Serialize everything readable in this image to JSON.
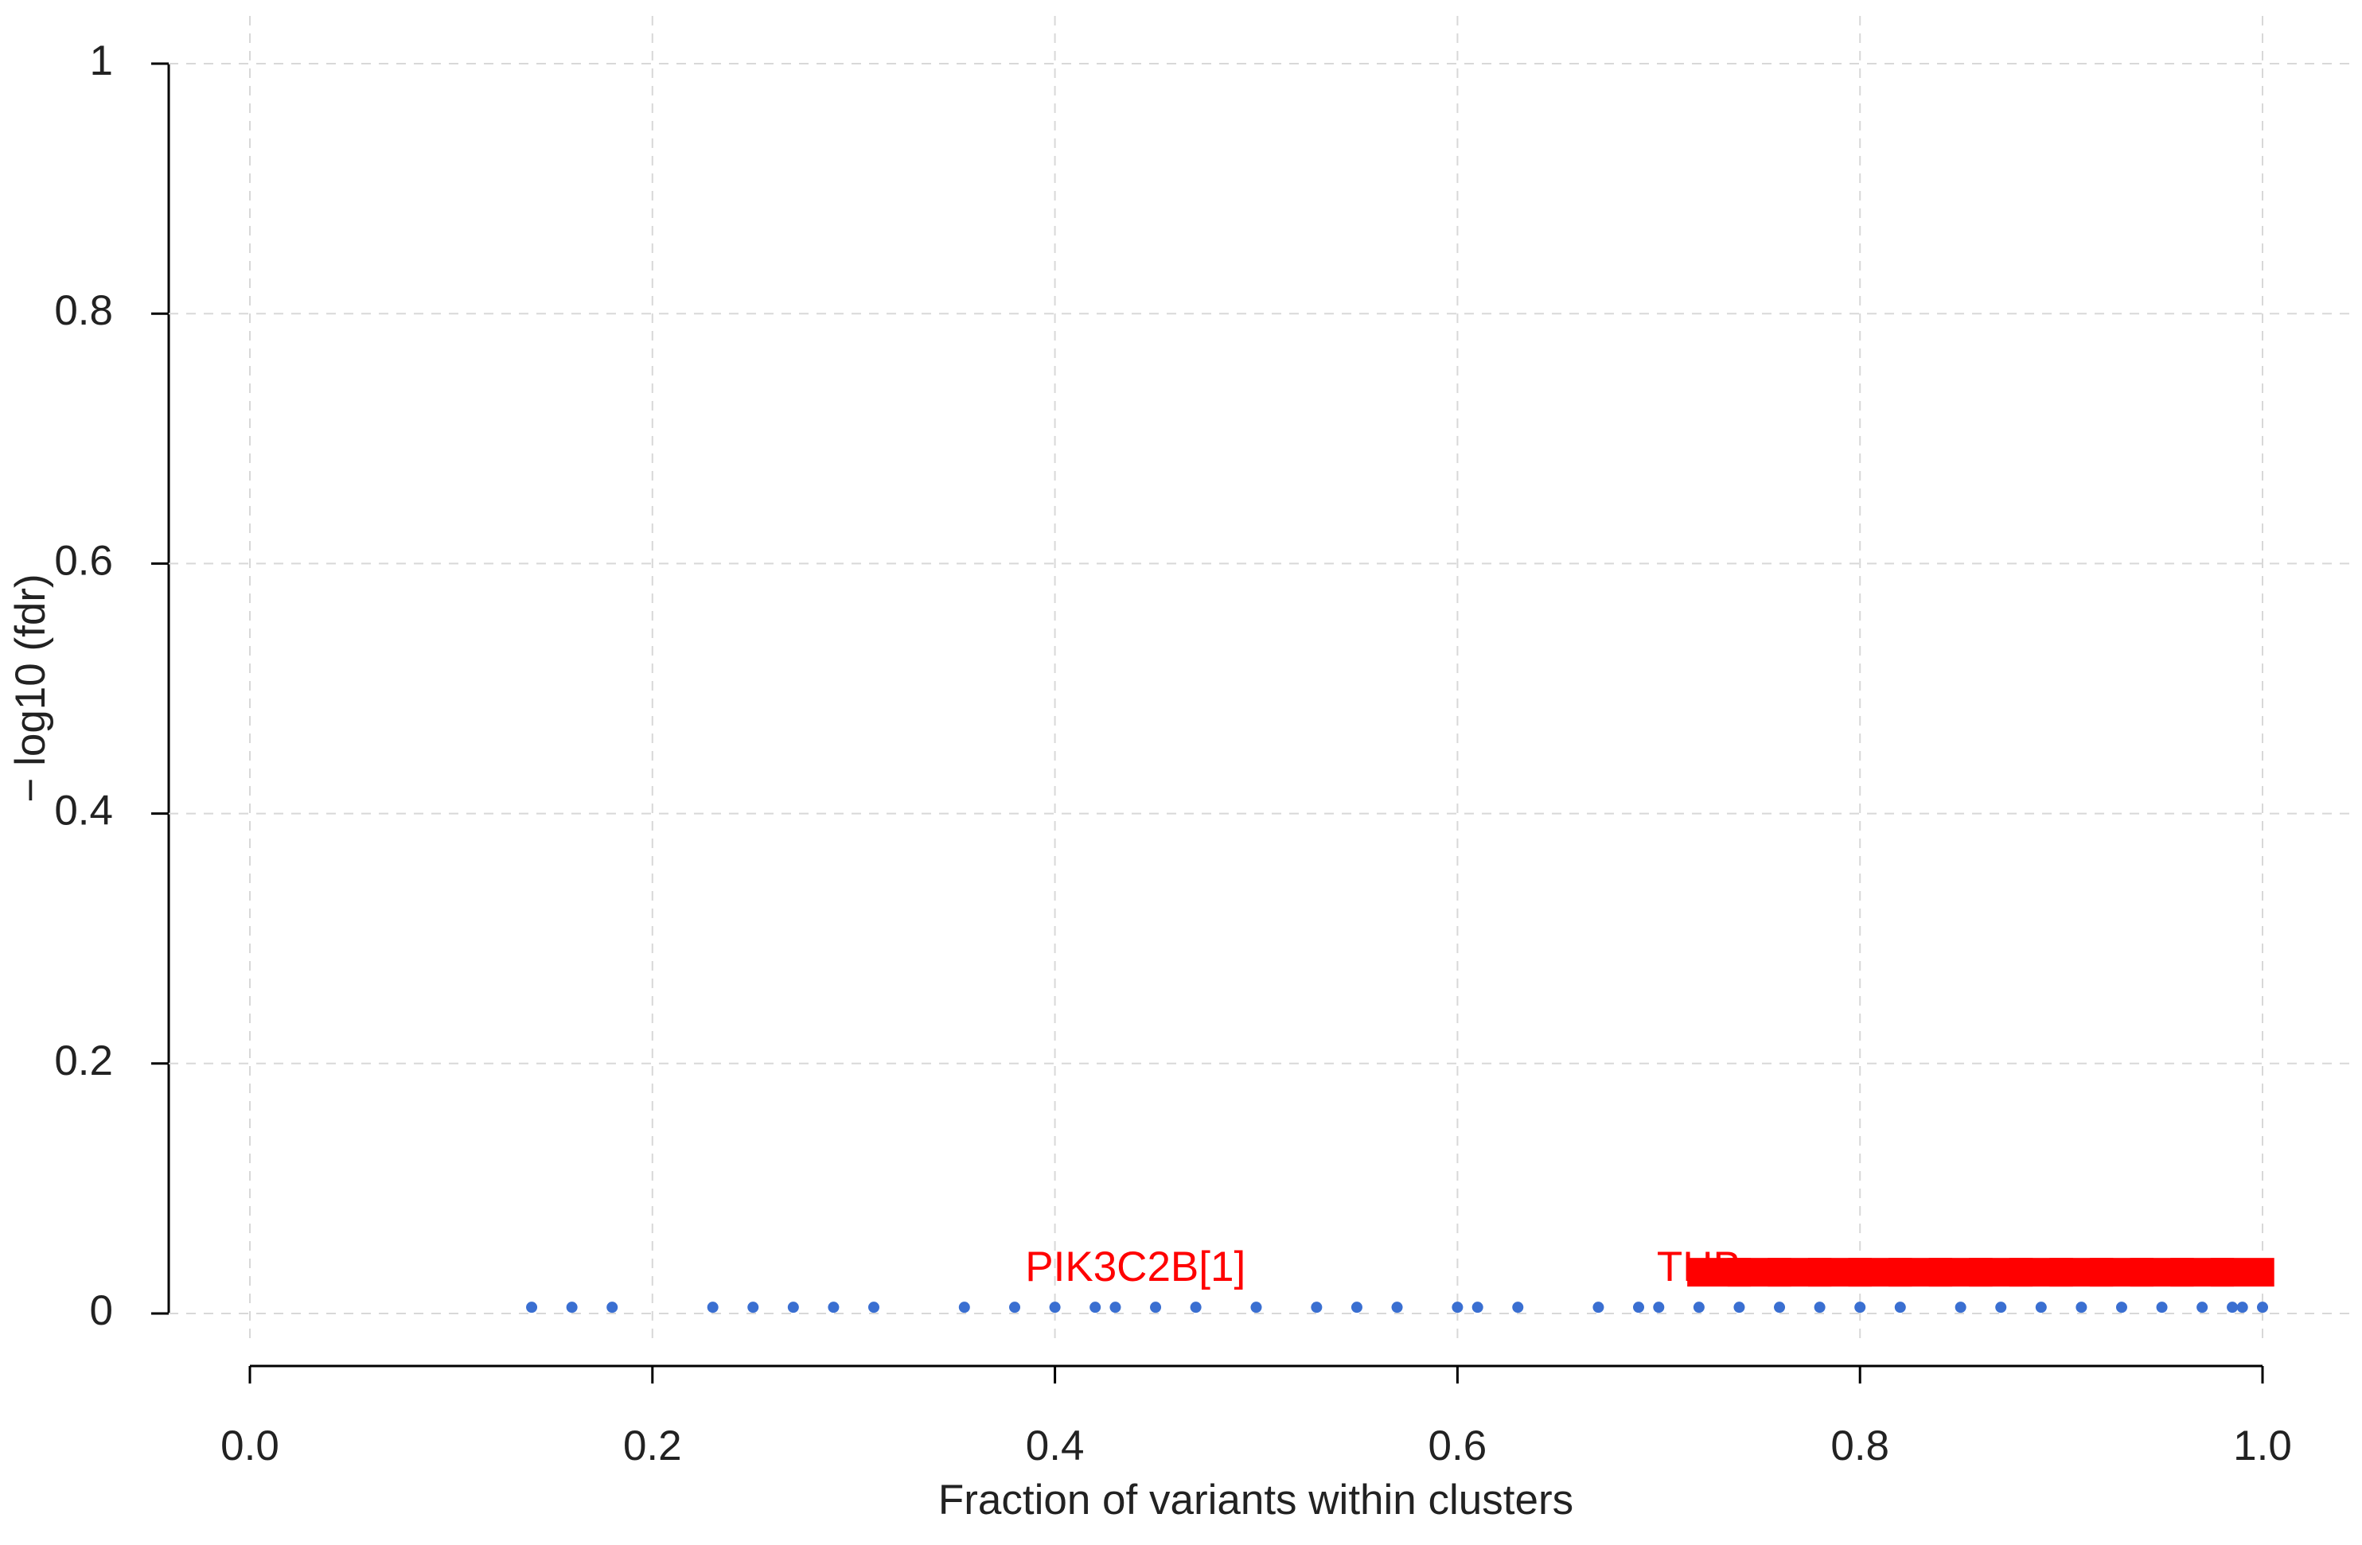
{
  "chart_data": {
    "type": "scatter",
    "x_label": "Fraction of variants within clusters",
    "y_label": "− log10 (fdr)",
    "xlim": [
      0,
      1
    ],
    "ylim": [
      0,
      1
    ],
    "xticks": [
      {
        "value": 0,
        "label": "0.0"
      },
      0.2,
      0.4,
      0.6,
      0.8,
      {
        "value": 1,
        "label": "1.0"
      }
    ],
    "yticks": [
      0,
      0.2,
      0.4,
      0.6,
      0.8,
      1
    ],
    "grid": true,
    "series": [
      {
        "color": "#3a6fd1",
        "x": [
          0.14,
          0.16,
          0.18,
          0.23,
          0.25,
          0.27,
          0.29,
          0.31,
          0.355,
          0.38,
          0.4,
          0.42,
          0.43,
          0.45,
          0.47,
          0.5,
          0.53,
          0.55,
          0.57,
          0.6,
          0.61,
          0.63,
          0.67,
          0.69,
          0.7,
          0.72,
          0.74,
          0.76,
          0.78,
          0.8,
          0.82,
          0.85,
          0.87,
          0.89,
          0.91,
          0.93,
          0.95,
          0.97,
          0.985,
          0.99,
          1.0
        ],
        "values": [
          0.005,
          0.005,
          0.005,
          0.005,
          0.005,
          0.005,
          0.005,
          0.005,
          0.005,
          0.005,
          0.005,
          0.005,
          0.005,
          0.005,
          0.005,
          0.005,
          0.005,
          0.005,
          0.005,
          0.005,
          0.005,
          0.005,
          0.005,
          0.005,
          0.005,
          0.005,
          0.005,
          0.005,
          0.005,
          0.005,
          0.005,
          0.005,
          0.005,
          0.005,
          0.005,
          0.005,
          0.005,
          0.005,
          0.005,
          0.005,
          0.005
        ]
      },
      {
        "color": "#ff0000",
        "x": [
          0.73,
          0.75,
          0.77,
          0.79,
          0.81,
          0.83,
          0.85,
          0.87,
          0.89,
          0.91,
          0.93,
          0.95,
          0.97,
          0.99
        ],
        "values": [
          0.033,
          0.033,
          0.033,
          0.033,
          0.033,
          0.033,
          0.033,
          0.033,
          0.033,
          0.033,
          0.033,
          0.033,
          0.033,
          0.033
        ]
      }
    ],
    "annotations": [
      {
        "text": "PIK3C2B[1]",
        "x": 0.44,
        "y": 0.035,
        "color": "#ff0000"
      },
      {
        "text": "THB",
        "x": 0.72,
        "y": 0.035,
        "color": "#ff0000"
      }
    ]
  }
}
